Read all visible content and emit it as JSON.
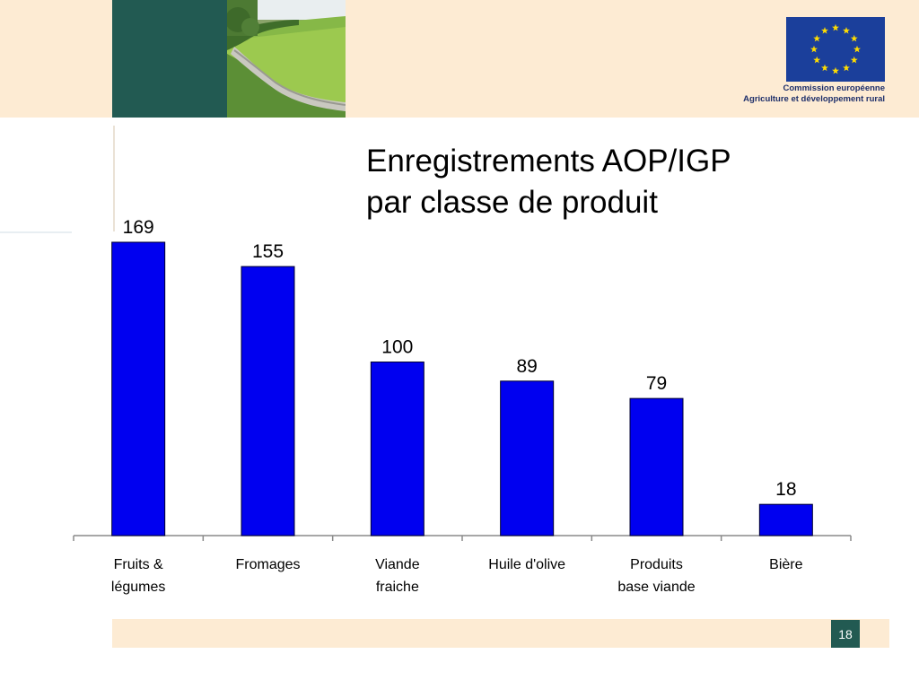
{
  "header": {
    "eu_caption_line1": "Commission européenne",
    "eu_caption_line2": "Agriculture et développement rural"
  },
  "colors": {
    "header_band": "#fdebd3",
    "teal": "#225a52",
    "bar": "#0000f0",
    "eu_blue": "#1b3f9b",
    "eu_star": "#ffdd00"
  },
  "chart_data": {
    "type": "bar",
    "title": "Enregistrements AOP/IGP par classe de produit",
    "title_lines": [
      "Enregistrements AOP/IGP",
      "par classe de produit"
    ],
    "categories": [
      [
        "Fruits &",
        "légumes"
      ],
      [
        "Fromages"
      ],
      [
        "Viande",
        "fraiche"
      ],
      [
        "Huile d'olive"
      ],
      [
        "Produits",
        "base viande"
      ],
      [
        "Bière"
      ]
    ],
    "values": [
      169,
      155,
      100,
      89,
      79,
      18
    ],
    "xlabel": "",
    "ylabel": "",
    "ylim": [
      0,
      169
    ],
    "grid": false,
    "legend": "none",
    "data_labels": true
  },
  "footer": {
    "page_number": "18"
  }
}
